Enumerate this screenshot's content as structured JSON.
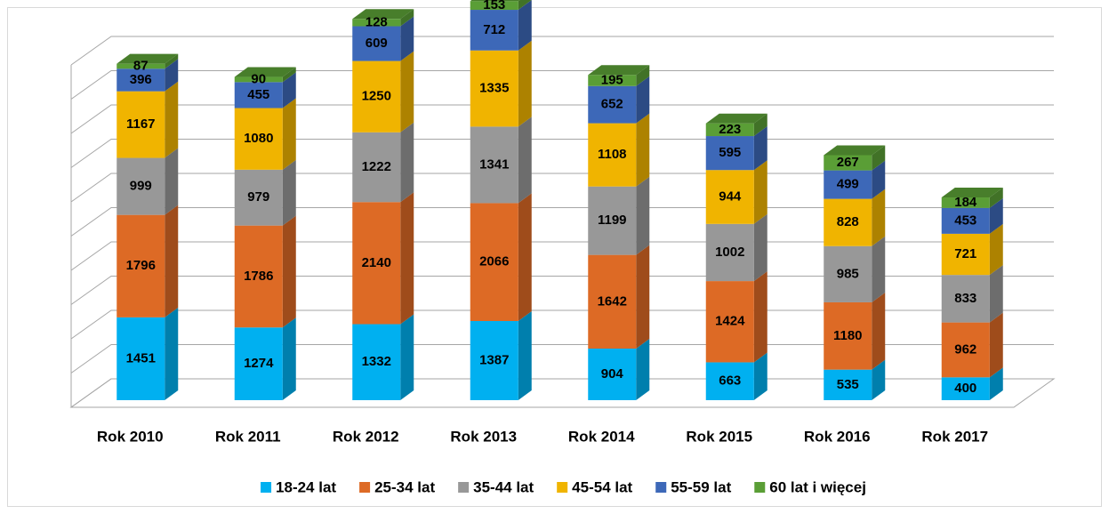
{
  "chart_data": {
    "type": "bar3d_stacked",
    "categories": [
      "Rok 2010",
      "Rok 2011",
      "Rok 2012",
      "Rok 2013",
      "Rok 2014",
      "Rok 2015",
      "Rok 2016",
      "Rok 2017"
    ],
    "series": [
      {
        "name": "18-24 lat",
        "color": "#00b0f0",
        "values": [
          1451,
          1274,
          1332,
          1387,
          904,
          663,
          535,
          400
        ]
      },
      {
        "name": "25-34 lat",
        "color": "#dd6a25",
        "values": [
          1796,
          1786,
          2140,
          2066,
          1642,
          1424,
          1180,
          962
        ]
      },
      {
        "name": "35-44 lat",
        "color": "#989898",
        "values": [
          999,
          979,
          1222,
          1341,
          1199,
          1002,
          985,
          833
        ]
      },
      {
        "name": "45-54 lat",
        "color": "#f0b400",
        "values": [
          1167,
          1080,
          1250,
          1335,
          1108,
          944,
          828,
          721
        ]
      },
      {
        "name": "55-59 lat",
        "color": "#3d68b8",
        "values": [
          396,
          455,
          609,
          712,
          652,
          595,
          499,
          453
        ]
      },
      {
        "name": "60 lat i więcej",
        "color": "#5a9e36",
        "values": [
          87,
          90,
          128,
          153,
          195,
          223,
          267,
          184
        ]
      }
    ],
    "ylim": [
      0,
      6000
    ],
    "yticks": [
      0,
      600,
      1200,
      1800,
      2400,
      3000,
      3600,
      4200,
      4800,
      5400,
      6000
    ],
    "grid": true
  }
}
